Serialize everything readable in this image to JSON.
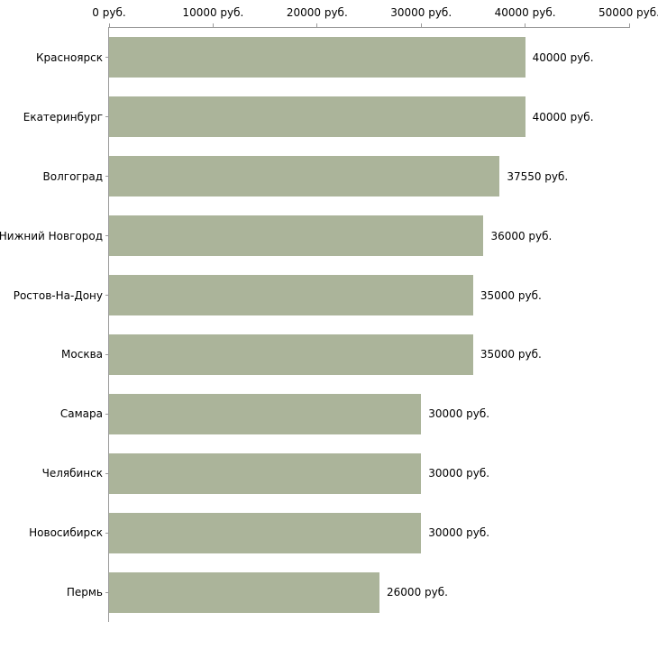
{
  "chart_data": {
    "type": "bar",
    "orientation": "horizontal",
    "title": "",
    "xlabel": "",
    "ylabel": "",
    "units": "руб.",
    "xlim": [
      0,
      50000
    ],
    "x_ticks": [
      "0 руб.",
      "10000 руб.",
      "20000 руб.",
      "30000 руб.",
      "40000 руб.",
      "50000 руб."
    ],
    "categories": [
      "Красноярск",
      "Екатеринбург",
      "Волгоград",
      "Нижний Новгород",
      "Ростов-На-Дону",
      "Москва",
      "Самара",
      "Челябинск",
      "Новосибирск",
      "Пермь"
    ],
    "values": [
      40000,
      40000,
      37550,
      36000,
      35000,
      35000,
      30000,
      30000,
      30000,
      26000
    ],
    "value_labels": [
      "40000 руб.",
      "40000 руб.",
      "37550 руб.",
      "36000 руб.",
      "35000 руб.",
      "35000 руб.",
      "30000 руб.",
      "30000 руб.",
      "30000 руб.",
      "26000 руб."
    ],
    "bar_color": "#abb49a",
    "axis_color": "#9a9a9a",
    "text_color": "#000000",
    "grid": false,
    "legend": "none"
  }
}
